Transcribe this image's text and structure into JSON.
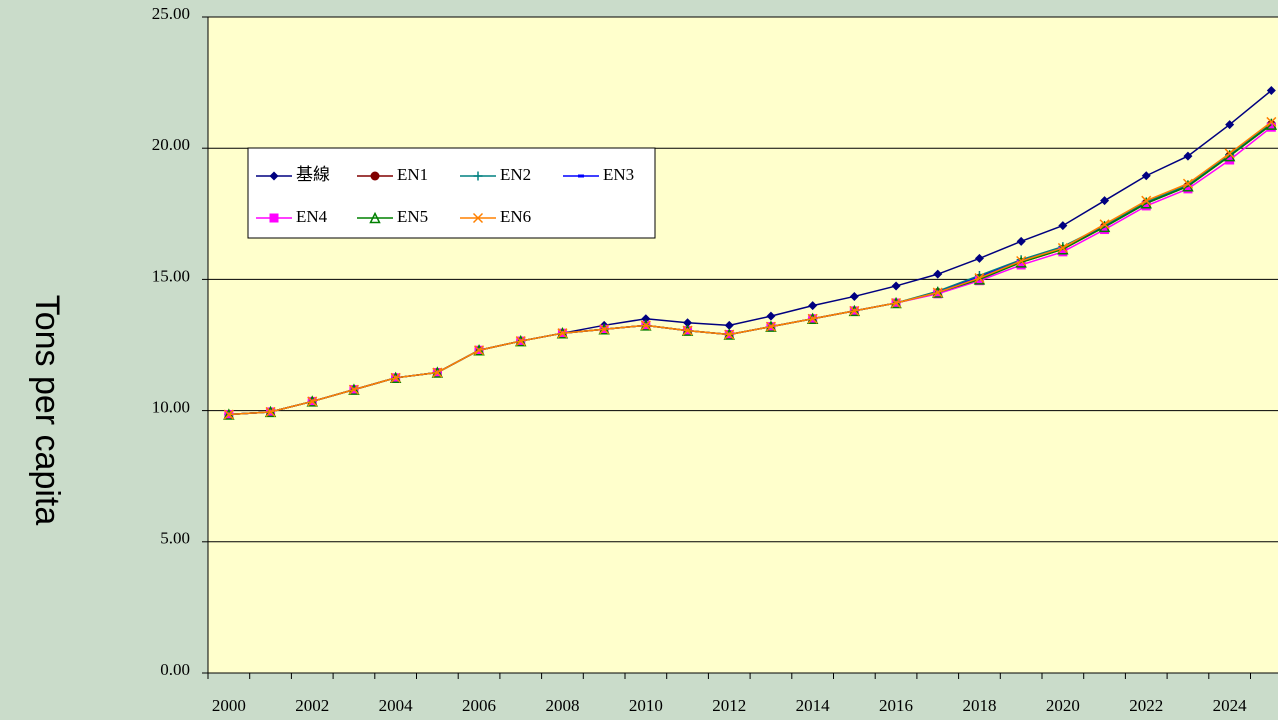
{
  "chart_data": {
    "type": "line",
    "y_label": "Tons per capita",
    "categories": [
      "2000",
      null,
      "2002",
      null,
      "2004",
      null,
      "2006",
      null,
      "2008",
      null,
      "2010",
      null,
      "2012",
      null,
      "2014",
      null,
      "2016",
      null,
      "2018",
      null,
      "2020",
      null,
      "2022",
      null,
      "2024",
      null
    ],
    "ylim": [
      0,
      25
    ],
    "yticks": [
      {
        "value": 0,
        "label": "0.00"
      },
      {
        "value": 5,
        "label": "5.00"
      },
      {
        "value": 10,
        "label": "10.00"
      },
      {
        "value": 15,
        "label": "15.00"
      },
      {
        "value": 20,
        "label": "20.00"
      },
      {
        "value": 25,
        "label": "25.00"
      }
    ],
    "grid": true,
    "legend": "upper left",
    "series": [
      {
        "name": "基線",
        "color": "#000080",
        "marker": "diamond",
        "values": [
          9.85,
          9.95,
          10.35,
          10.8,
          11.25,
          11.45,
          12.3,
          12.65,
          12.95,
          13.25,
          13.5,
          13.35,
          13.25,
          13.6,
          14.0,
          14.35,
          14.75,
          15.2,
          15.8,
          16.45,
          17.05,
          18.0,
          18.95,
          19.7,
          20.9,
          22.2
        ]
      },
      {
        "name": "EN1",
        "color": "#800000",
        "marker": "circle",
        "values": [
          9.85,
          9.95,
          10.35,
          10.8,
          11.25,
          11.45,
          12.3,
          12.65,
          12.95,
          13.1,
          13.25,
          13.05,
          12.9,
          13.2,
          13.5,
          13.8,
          14.1,
          14.5,
          15.05,
          15.65,
          16.15,
          17.0,
          17.9,
          18.55,
          19.7,
          20.9
        ]
      },
      {
        "name": "EN2",
        "color": "#008080",
        "marker": "plus",
        "values": [
          9.85,
          9.95,
          10.35,
          10.8,
          11.25,
          11.45,
          12.3,
          12.65,
          12.95,
          13.1,
          13.25,
          13.05,
          12.9,
          13.2,
          13.5,
          13.8,
          14.1,
          14.55,
          15.15,
          15.75,
          16.25,
          17.05,
          17.95,
          18.6,
          19.75,
          20.95
        ]
      },
      {
        "name": "EN3",
        "color": "#0000ff",
        "marker": "dash",
        "values": [
          9.85,
          9.95,
          10.35,
          10.8,
          11.25,
          11.45,
          12.3,
          12.65,
          12.95,
          13.1,
          13.25,
          13.05,
          12.9,
          13.2,
          13.5,
          13.8,
          14.1,
          14.5,
          15.1,
          15.7,
          16.2,
          17.0,
          17.9,
          18.55,
          19.7,
          20.9
        ]
      },
      {
        "name": "EN4",
        "color": "#ff00ff",
        "marker": "square",
        "values": [
          9.85,
          9.95,
          10.35,
          10.8,
          11.25,
          11.45,
          12.3,
          12.65,
          12.95,
          13.1,
          13.25,
          13.05,
          12.9,
          13.2,
          13.5,
          13.8,
          14.1,
          14.45,
          14.95,
          15.55,
          16.05,
          16.9,
          17.8,
          18.45,
          19.55,
          20.8
        ]
      },
      {
        "name": "EN5",
        "color": "#008000",
        "marker": "triangle",
        "values": [
          9.85,
          9.95,
          10.35,
          10.8,
          11.25,
          11.45,
          12.3,
          12.65,
          12.95,
          13.1,
          13.25,
          13.05,
          12.9,
          13.2,
          13.5,
          13.8,
          14.1,
          14.5,
          15.0,
          15.65,
          16.15,
          17.0,
          17.9,
          18.55,
          19.7,
          20.9
        ]
      },
      {
        "name": "EN6",
        "color": "#ff8000",
        "marker": "x",
        "values": [
          9.85,
          9.95,
          10.35,
          10.8,
          11.25,
          11.45,
          12.3,
          12.65,
          12.95,
          13.1,
          13.25,
          13.05,
          12.9,
          13.2,
          13.5,
          13.8,
          14.1,
          14.5,
          15.05,
          15.7,
          16.2,
          17.1,
          18.0,
          18.65,
          19.8,
          21.0
        ]
      }
    ]
  }
}
